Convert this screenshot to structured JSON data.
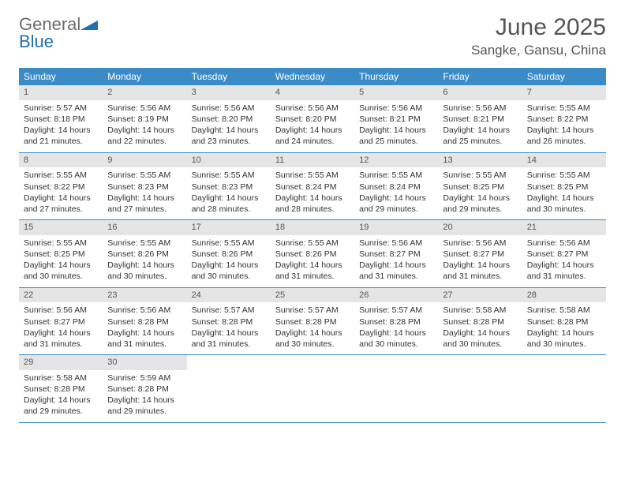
{
  "logo": {
    "word1": "General",
    "word2": "Blue"
  },
  "title": "June 2025",
  "location": "Sangke, Gansu, China",
  "colors": {
    "header_bg": "#3b8bc9",
    "header_text": "#ffffff",
    "daynum_bg": "#e5e5e5",
    "daynum_text": "#555555",
    "row_border": "#3b8bc9",
    "body_text": "#333333",
    "title_text": "#555555",
    "logo_gray": "#6d6d6d",
    "logo_blue": "#1f6fb2",
    "page_bg": "#ffffff"
  },
  "typography": {
    "title_fontsize": 30,
    "location_fontsize": 17,
    "header_fontsize": 12,
    "cell_fontsize": 10.5,
    "daynum_fontsize": 11
  },
  "day_headers": [
    "Sunday",
    "Monday",
    "Tuesday",
    "Wednesday",
    "Thursday",
    "Friday",
    "Saturday"
  ],
  "weeks": [
    [
      {
        "n": "1",
        "l1": "Sunrise: 5:57 AM",
        "l2": "Sunset: 8:18 PM",
        "l3": "Daylight: 14 hours",
        "l4": "and 21 minutes."
      },
      {
        "n": "2",
        "l1": "Sunrise: 5:56 AM",
        "l2": "Sunset: 8:19 PM",
        "l3": "Daylight: 14 hours",
        "l4": "and 22 minutes."
      },
      {
        "n": "3",
        "l1": "Sunrise: 5:56 AM",
        "l2": "Sunset: 8:20 PM",
        "l3": "Daylight: 14 hours",
        "l4": "and 23 minutes."
      },
      {
        "n": "4",
        "l1": "Sunrise: 5:56 AM",
        "l2": "Sunset: 8:20 PM",
        "l3": "Daylight: 14 hours",
        "l4": "and 24 minutes."
      },
      {
        "n": "5",
        "l1": "Sunrise: 5:56 AM",
        "l2": "Sunset: 8:21 PM",
        "l3": "Daylight: 14 hours",
        "l4": "and 25 minutes."
      },
      {
        "n": "6",
        "l1": "Sunrise: 5:56 AM",
        "l2": "Sunset: 8:21 PM",
        "l3": "Daylight: 14 hours",
        "l4": "and 25 minutes."
      },
      {
        "n": "7",
        "l1": "Sunrise: 5:55 AM",
        "l2": "Sunset: 8:22 PM",
        "l3": "Daylight: 14 hours",
        "l4": "and 26 minutes."
      }
    ],
    [
      {
        "n": "8",
        "l1": "Sunrise: 5:55 AM",
        "l2": "Sunset: 8:22 PM",
        "l3": "Daylight: 14 hours",
        "l4": "and 27 minutes."
      },
      {
        "n": "9",
        "l1": "Sunrise: 5:55 AM",
        "l2": "Sunset: 8:23 PM",
        "l3": "Daylight: 14 hours",
        "l4": "and 27 minutes."
      },
      {
        "n": "10",
        "l1": "Sunrise: 5:55 AM",
        "l2": "Sunset: 8:23 PM",
        "l3": "Daylight: 14 hours",
        "l4": "and 28 minutes."
      },
      {
        "n": "11",
        "l1": "Sunrise: 5:55 AM",
        "l2": "Sunset: 8:24 PM",
        "l3": "Daylight: 14 hours",
        "l4": "and 28 minutes."
      },
      {
        "n": "12",
        "l1": "Sunrise: 5:55 AM",
        "l2": "Sunset: 8:24 PM",
        "l3": "Daylight: 14 hours",
        "l4": "and 29 minutes."
      },
      {
        "n": "13",
        "l1": "Sunrise: 5:55 AM",
        "l2": "Sunset: 8:25 PM",
        "l3": "Daylight: 14 hours",
        "l4": "and 29 minutes."
      },
      {
        "n": "14",
        "l1": "Sunrise: 5:55 AM",
        "l2": "Sunset: 8:25 PM",
        "l3": "Daylight: 14 hours",
        "l4": "and 30 minutes."
      }
    ],
    [
      {
        "n": "15",
        "l1": "Sunrise: 5:55 AM",
        "l2": "Sunset: 8:25 PM",
        "l3": "Daylight: 14 hours",
        "l4": "and 30 minutes."
      },
      {
        "n": "16",
        "l1": "Sunrise: 5:55 AM",
        "l2": "Sunset: 8:26 PM",
        "l3": "Daylight: 14 hours",
        "l4": "and 30 minutes."
      },
      {
        "n": "17",
        "l1": "Sunrise: 5:55 AM",
        "l2": "Sunset: 8:26 PM",
        "l3": "Daylight: 14 hours",
        "l4": "and 30 minutes."
      },
      {
        "n": "18",
        "l1": "Sunrise: 5:55 AM",
        "l2": "Sunset: 8:26 PM",
        "l3": "Daylight: 14 hours",
        "l4": "and 31 minutes."
      },
      {
        "n": "19",
        "l1": "Sunrise: 5:56 AM",
        "l2": "Sunset: 8:27 PM",
        "l3": "Daylight: 14 hours",
        "l4": "and 31 minutes."
      },
      {
        "n": "20",
        "l1": "Sunrise: 5:56 AM",
        "l2": "Sunset: 8:27 PM",
        "l3": "Daylight: 14 hours",
        "l4": "and 31 minutes."
      },
      {
        "n": "21",
        "l1": "Sunrise: 5:56 AM",
        "l2": "Sunset: 8:27 PM",
        "l3": "Daylight: 14 hours",
        "l4": "and 31 minutes."
      }
    ],
    [
      {
        "n": "22",
        "l1": "Sunrise: 5:56 AM",
        "l2": "Sunset: 8:27 PM",
        "l3": "Daylight: 14 hours",
        "l4": "and 31 minutes."
      },
      {
        "n": "23",
        "l1": "Sunrise: 5:56 AM",
        "l2": "Sunset: 8:28 PM",
        "l3": "Daylight: 14 hours",
        "l4": "and 31 minutes."
      },
      {
        "n": "24",
        "l1": "Sunrise: 5:57 AM",
        "l2": "Sunset: 8:28 PM",
        "l3": "Daylight: 14 hours",
        "l4": "and 31 minutes."
      },
      {
        "n": "25",
        "l1": "Sunrise: 5:57 AM",
        "l2": "Sunset: 8:28 PM",
        "l3": "Daylight: 14 hours",
        "l4": "and 30 minutes."
      },
      {
        "n": "26",
        "l1": "Sunrise: 5:57 AM",
        "l2": "Sunset: 8:28 PM",
        "l3": "Daylight: 14 hours",
        "l4": "and 30 minutes."
      },
      {
        "n": "27",
        "l1": "Sunrise: 5:58 AM",
        "l2": "Sunset: 8:28 PM",
        "l3": "Daylight: 14 hours",
        "l4": "and 30 minutes."
      },
      {
        "n": "28",
        "l1": "Sunrise: 5:58 AM",
        "l2": "Sunset: 8:28 PM",
        "l3": "Daylight: 14 hours",
        "l4": "and 30 minutes."
      }
    ],
    [
      {
        "n": "29",
        "l1": "Sunrise: 5:58 AM",
        "l2": "Sunset: 8:28 PM",
        "l3": "Daylight: 14 hours",
        "l4": "and 29 minutes."
      },
      {
        "n": "30",
        "l1": "Sunrise: 5:59 AM",
        "l2": "Sunset: 8:28 PM",
        "l3": "Daylight: 14 hours",
        "l4": "and 29 minutes."
      },
      {
        "empty": true,
        "n": "",
        "l1": "",
        "l2": "",
        "l3": "",
        "l4": ""
      },
      {
        "empty": true,
        "n": "",
        "l1": "",
        "l2": "",
        "l3": "",
        "l4": ""
      },
      {
        "empty": true,
        "n": "",
        "l1": "",
        "l2": "",
        "l3": "",
        "l4": ""
      },
      {
        "empty": true,
        "n": "",
        "l1": "",
        "l2": "",
        "l3": "",
        "l4": ""
      },
      {
        "empty": true,
        "n": "",
        "l1": "",
        "l2": "",
        "l3": "",
        "l4": ""
      }
    ]
  ]
}
